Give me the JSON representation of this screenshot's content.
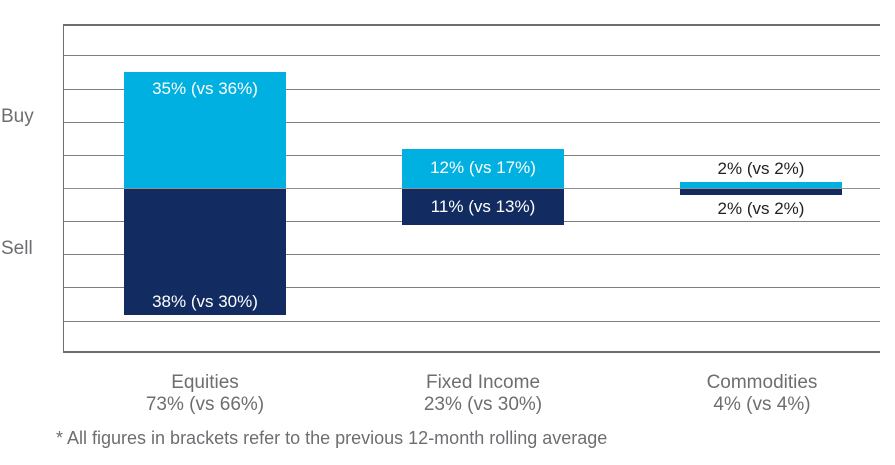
{
  "chart_data": {
    "type": "bar",
    "subtype": "diverging-stacked-bar",
    "unit": "%",
    "axis": {
      "ymax": 49,
      "ymin": -49,
      "grid_step": 10,
      "positive_label": "Buy",
      "negative_label": "Sell",
      "grid": "on"
    },
    "colors": {
      "buy": "#00B0E0",
      "sell": "#122C61",
      "grid": "#7D7E81",
      "frame": "#6D6E71",
      "text_gray": "#6D6E71",
      "dark_label": "#231F20"
    },
    "categories": [
      {
        "name": "Equities",
        "total_label": "73% (vs 66%)",
        "buy": {
          "value": 35,
          "label": "35% (vs 36%)",
          "label_placement": "inside-top"
        },
        "sell": {
          "value": 38,
          "label": "38% (vs 30%)",
          "label_placement": "inside-bottom"
        }
      },
      {
        "name": "Fixed Income",
        "total_label": "23% (vs 30%)",
        "buy": {
          "value": 12,
          "label": "12% (vs 17%)",
          "label_placement": "inside-center"
        },
        "sell": {
          "value": 11,
          "label": "11% (vs 13%)",
          "label_placement": "inside-center"
        }
      },
      {
        "name": "Commodities",
        "total_label": "4% (vs 4%)",
        "buy": {
          "value": 2,
          "label": "2% (vs 2%)",
          "label_placement": "outside-above"
        },
        "sell": {
          "value": 2,
          "label": "2% (vs 2%)",
          "label_placement": "outside-below"
        }
      }
    ],
    "footnote": "* All figures in brackets refer to the previous 12-month rolling average"
  }
}
